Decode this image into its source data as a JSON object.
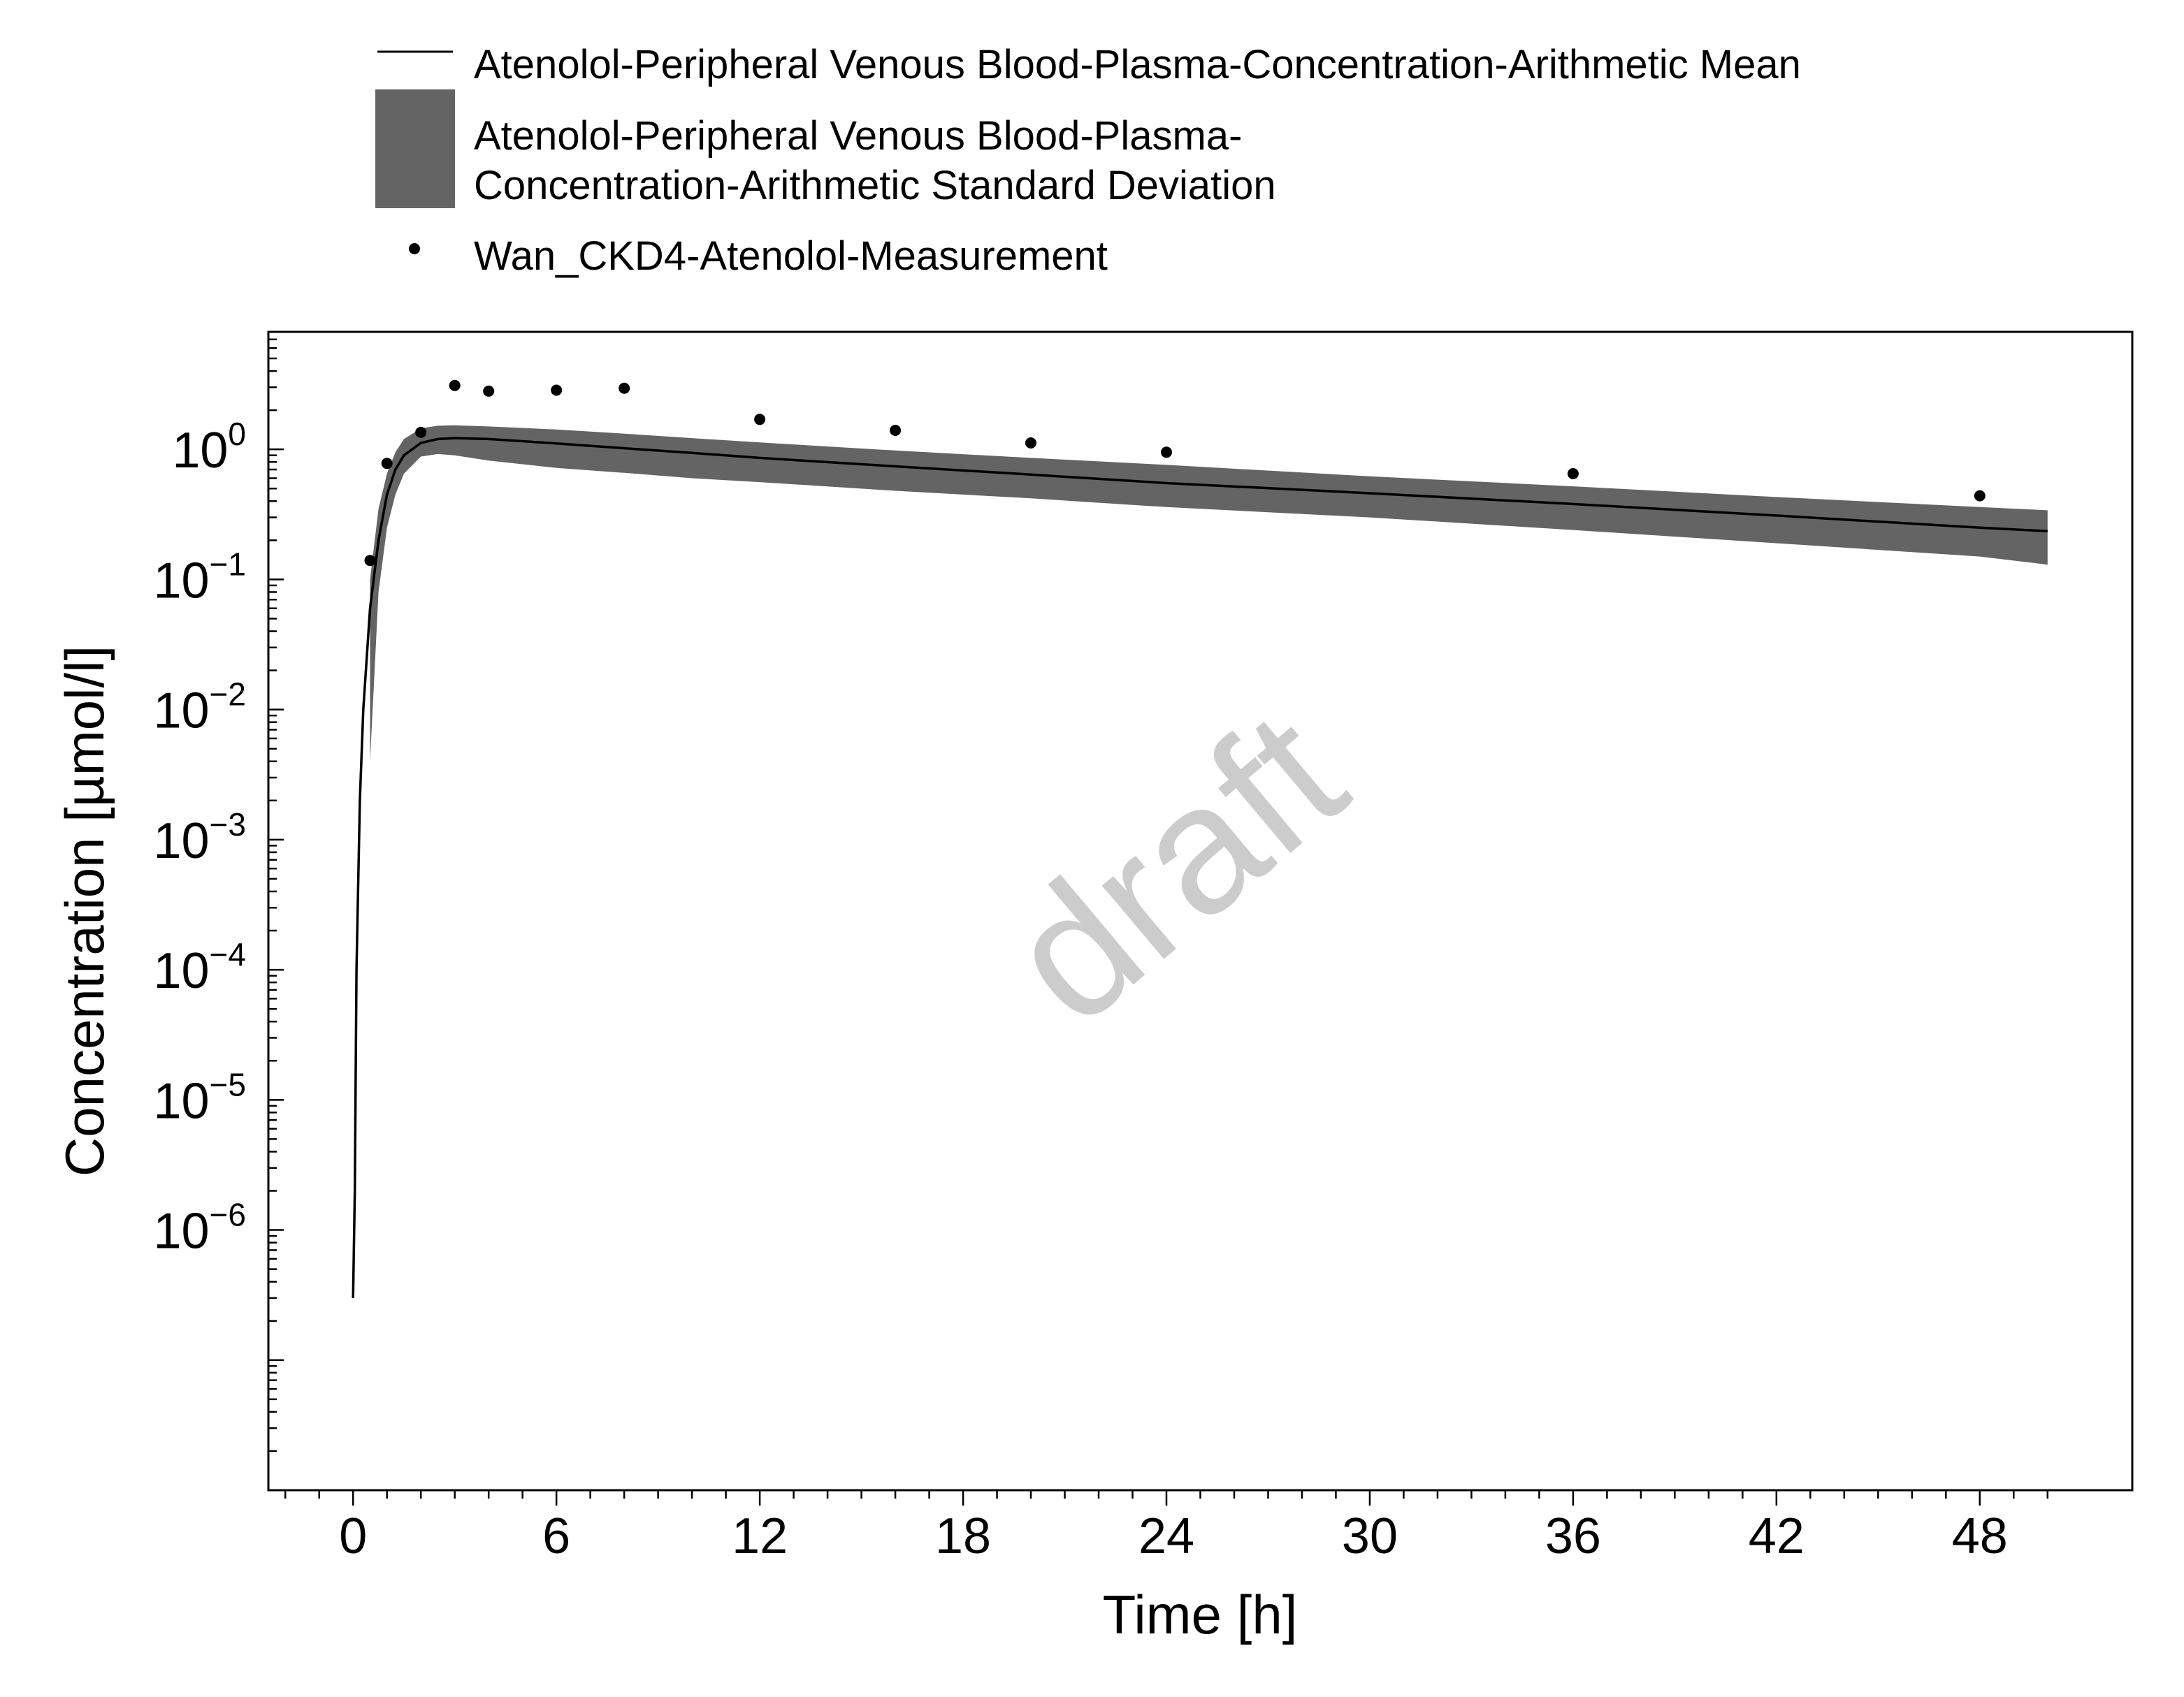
{
  "chart_data": {
    "type": "line",
    "xlabel": "Time [h]",
    "ylabel": "Concentration [µmol/l]",
    "y_scale": "log",
    "xlim": [
      -2.5,
      52.5
    ],
    "ylim": [
      1e-08,
      8
    ],
    "x_ticks": [
      0,
      6,
      12,
      18,
      24,
      30,
      36,
      42,
      48
    ],
    "y_ticks": [
      {
        "value": 1,
        "base": "10",
        "exp": "0"
      },
      {
        "value": 0.1,
        "base": "10",
        "exp": "−1"
      },
      {
        "value": 0.01,
        "base": "10",
        "exp": "−2"
      },
      {
        "value": 0.001,
        "base": "10",
        "exp": "−3"
      },
      {
        "value": 0.0001,
        "base": "10",
        "exp": "−4"
      },
      {
        "value": 1e-05,
        "base": "10",
        "exp": "−5"
      },
      {
        "value": 1e-06,
        "base": "10",
        "exp": "−6"
      }
    ],
    "grid": false,
    "legend_position": "top",
    "watermark": "draft",
    "colors": {
      "mean": "#000000",
      "sd_band": "#646464",
      "measurement": "#000000",
      "watermark": "#cccccc"
    },
    "series": [
      {
        "name": "Atenolol-Peripheral Venous Blood-Plasma-Concentration-Arithmetic Mean",
        "kind": "line",
        "x": [
          0,
          0.05,
          0.1,
          0.2,
          0.3,
          0.5,
          0.75,
          1,
          1.25,
          1.5,
          2,
          2.5,
          3,
          4,
          6,
          8,
          10,
          12,
          16,
          20,
          24,
          30,
          36,
          42,
          48,
          50
        ],
        "y": [
          3e-07,
          2e-06,
          0.0001,
          0.002,
          0.01,
          0.06,
          0.2,
          0.45,
          0.7,
          0.9,
          1.12,
          1.2,
          1.22,
          1.2,
          1.11,
          1.02,
          0.94,
          0.86,
          0.74,
          0.64,
          0.55,
          0.46,
          0.38,
          0.31,
          0.25,
          0.235
        ]
      },
      {
        "name": "Atenolol-Peripheral Venous Blood-Plasma-Concentration-Arithmetic Standard Deviation",
        "kind": "band",
        "x": [
          0.5,
          0.75,
          1,
          1.25,
          1.5,
          2,
          2.5,
          3,
          4,
          6,
          8,
          10,
          12,
          16,
          20,
          24,
          30,
          36,
          42,
          48,
          50
        ],
        "lower": [
          0.004,
          0.08,
          0.25,
          0.45,
          0.65,
          0.88,
          0.92,
          0.9,
          0.82,
          0.72,
          0.66,
          0.6,
          0.56,
          0.48,
          0.42,
          0.36,
          0.3,
          0.24,
          0.19,
          0.15,
          0.13
        ],
        "upper": [
          0.1,
          0.35,
          0.65,
          0.95,
          1.2,
          1.45,
          1.52,
          1.53,
          1.5,
          1.42,
          1.32,
          1.22,
          1.13,
          0.98,
          0.86,
          0.76,
          0.62,
          0.52,
          0.43,
          0.36,
          0.34
        ],
        "legend_lines": [
          "Atenolol-Peripheral Venous Blood-Plasma-",
          "Concentration-Arithmetic Standard Deviation"
        ]
      },
      {
        "name": "Wan_CKD4-Atenolol-Measurement",
        "kind": "scatter",
        "x": [
          0.5,
          1,
          2,
          3,
          4,
          6,
          8,
          12,
          16,
          20,
          24,
          36,
          48
        ],
        "y": [
          0.14,
          0.78,
          1.35,
          3.1,
          2.8,
          2.85,
          2.95,
          1.7,
          1.4,
          1.12,
          0.95,
          0.65,
          0.44
        ]
      }
    ]
  }
}
